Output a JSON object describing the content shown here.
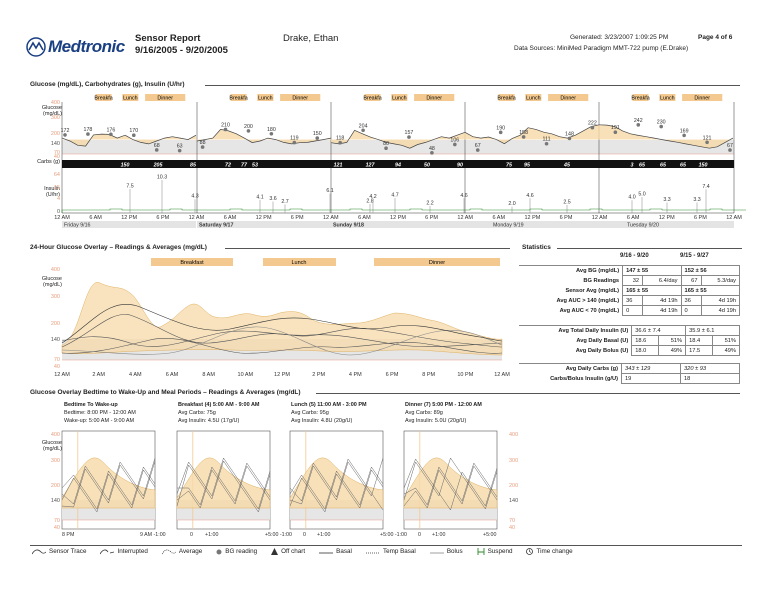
{
  "header": {
    "logo": "Medtronic",
    "report_title": "Sensor Report",
    "date_range": "9/16/2005 - 9/20/2005",
    "patient": "Drake, Ethan",
    "generated": "Generated: 3/23/2007 1:09:25 PM",
    "page": "Page 4 of 6",
    "data_sources": "Data Sources: MiniMed Paradigm MMT-722 pump (E.Drake)"
  },
  "daily_section": {
    "title": "Glucose (mg/dL), Carbohydrates (g), Insulin (U/hr)",
    "glucose_label": "Glucose (mg/dL)",
    "carbs_label": "Carbs (g)",
    "insulin_label": "Insulin (U/hr)",
    "y_ticks": [
      "400",
      "300",
      "200",
      "140",
      "70",
      "40"
    ],
    "insulin_ticks": [
      "64",
      "15",
      "4",
      "0"
    ],
    "x_ticks": [
      "12 AM",
      "6 AM",
      "12 PM",
      "6 PM",
      "12 AM",
      "6 AM",
      "12 PM",
      "6 PM",
      "12 AM",
      "6 AM",
      "12 PM",
      "6 PM",
      "12 AM",
      "6 AM",
      "12 PM",
      "6 PM",
      "12 AM",
      "6 AM",
      "12 PM",
      "6 PM",
      "12 AM"
    ],
    "day_labels": [
      "Friday 9/16",
      "Saturday 9/17",
      "Sunday 9/18",
      "Monday 9/19",
      "Tuesday 9/20"
    ],
    "meal_labels": [
      "Breakfa",
      "Lunch",
      "Dinner"
    ],
    "bg_labels": [
      "172",
      "178",
      "176",
      "170",
      "68",
      "63",
      "88",
      "210",
      "200",
      "180",
      "119",
      "150",
      "118",
      "204",
      "80",
      "157",
      "48",
      "106",
      "67",
      "190",
      "158",
      "111",
      "148",
      "222",
      "191",
      "242",
      "230",
      "169",
      "121",
      "67"
    ],
    "carbs": [
      "150",
      "205",
      "85",
      "72",
      "77",
      "53",
      "121",
      "127",
      "94",
      "50",
      "90",
      "75",
      "95",
      "45",
      "3",
      "65",
      "65",
      "65",
      "150"
    ],
    "bolus_labels": [
      "7.5",
      "10.3",
      "4.3",
      "4.1",
      "3.6",
      "2.7",
      "6.1",
      "2.8",
      "4.2",
      "4.7",
      "2.2",
      "4.6",
      "2.0",
      "4.6",
      "2.5",
      "4.0",
      "5.0",
      "3.3",
      "3.3",
      "7.4"
    ]
  },
  "overlay_section": {
    "title": "24-Hour Glucose Overlay – Readings & Averages (mg/dL)",
    "glucose_label": "Glucose (mg/dL)",
    "y_ticks": [
      "400",
      "300",
      "200",
      "140",
      "70",
      "40"
    ],
    "meals": [
      "Breakfast",
      "Lunch",
      "Dinner"
    ],
    "x_ticks": [
      "12 AM",
      "2 AM",
      "4 AM",
      "6 AM",
      "8 AM",
      "10 AM",
      "12 PM",
      "2 PM",
      "4 PM",
      "6 PM",
      "8 PM",
      "10 PM",
      "12 AM"
    ]
  },
  "statistics": {
    "title": "Statistics",
    "col1": "9/16 - 9/20",
    "col2": "9/15 - 9/27",
    "rows": [
      {
        "label": "Avg BG (mg/dL)",
        "a": "147 ± 55",
        "b": "152 ± 56"
      },
      {
        "label": "BG Readings",
        "a1": "32",
        "a2": "6.4/day",
        "b1": "67",
        "b2": "5.3/day"
      },
      {
        "label": "Sensor Avg (mg/dL)",
        "a": "165 ± 55",
        "b": "165 ± 55"
      },
      {
        "label": "Avg AUC > 140 (mg/dL)",
        "a1": "36",
        "a2": "4d 19h",
        "b1": "36",
        "b2": "4d 19h"
      },
      {
        "label": "Avg AUC < 70 (mg/dL)",
        "a1": "0",
        "a2": "4d 19h",
        "b1": "0",
        "b2": "4d 19h"
      }
    ],
    "rows2": [
      {
        "label": "Avg Total Daily Insulin (U)",
        "a": "36.6 ± 7.4",
        "b": "35.9 ± 6.1"
      },
      {
        "label": "Avg Daily Basal (U)",
        "a1": "18.6",
        "a2": "51%",
        "b1": "18.4",
        "b2": "51%"
      },
      {
        "label": "Avg Daily Bolus (U)",
        "a1": "18.0",
        "a2": "49%",
        "b1": "17.5",
        "b2": "49%"
      }
    ],
    "rows3": [
      {
        "label": "Avg Daily Carbs (g)",
        "a": "343 ± 129",
        "b": "320 ± 93"
      },
      {
        "label": "Carbs/Bolus Insulin (g/U)",
        "a": "19",
        "b": "18"
      }
    ]
  },
  "periods_section": {
    "title": "Glucose Overlay Bedtime to Wake-Up and Meal Periods – Readings & Averages (mg/dL)",
    "glucose_label": "Glucose (mg/dL)",
    "y_ticks": [
      "400",
      "300",
      "200",
      "140",
      "70",
      "40"
    ],
    "periods": [
      {
        "l1": "Bedtime To Wake-up",
        "l2": "Bedtime: 8:00 PM - 12:00 AM",
        "l3": "Wake-up: 5:00 AM - 9:00 AM",
        "x1": "8 PM",
        "x2": "9 AM -1:00",
        "x3": "0",
        "x4": "+1:00"
      },
      {
        "l1": "Breakfast (4) 5:00 AM - 9:00 AM",
        "l2": "Avg Carbs: 75g",
        "l3": "Avg Insulin: 4.5U (17g/U)",
        "x1": "+5:00 -1:00",
        "x2": "0",
        "x3": "+1:00",
        "x4": ""
      },
      {
        "l1": "Lunch (5) 11:00 AM - 3:00 PM",
        "l2": "Avg Carbs: 95g",
        "l3": "Avg Insulin: 4.8U (20g/U)",
        "x1": "+5:00 -1:00",
        "x2": "0",
        "x3": "+1:00",
        "x4": ""
      },
      {
        "l1": "Dinner (7) 5:00 PM - 12:00 AM",
        "l2": "Avg Carbs: 89g",
        "l3": "Avg Insulin: 5.0U (20g/U)",
        "x1": "0",
        "x2": "+1:00",
        "x3": "+5:00",
        "x4": ""
      }
    ],
    "right_ticks": [
      "400",
      "300",
      "200",
      "140",
      "70",
      "40"
    ]
  },
  "legend": [
    {
      "icon": "sensor-trace-icon",
      "label": "Sensor Trace"
    },
    {
      "icon": "interrupted-icon",
      "label": "Interrupted"
    },
    {
      "icon": "average-icon",
      "label": "Average"
    },
    {
      "icon": "bg-reading-icon",
      "label": "BG reading"
    },
    {
      "icon": "off-chart-icon",
      "label": "Off chart"
    },
    {
      "icon": "basal-icon",
      "label": "Basal"
    },
    {
      "icon": "temp-basal-icon",
      "label": "Temp Basal"
    },
    {
      "icon": "bolus-icon",
      "label": "Bolus"
    },
    {
      "icon": "suspend-icon",
      "label": "Suspend"
    },
    {
      "icon": "time-change-icon",
      "label": "Time change"
    }
  ],
  "chart_data": [
    {
      "type": "line",
      "title": "Glucose (mg/dL), Carbohydrates (g), Insulin (U/hr)",
      "ylabel": "Glucose (mg/dL)",
      "ylim": [
        40,
        400
      ],
      "bg_readings": [
        172,
        178,
        176,
        170,
        68,
        63,
        88,
        210,
        200,
        180,
        119,
        150,
        118,
        204,
        80,
        157,
        48,
        106,
        67,
        190,
        158,
        111,
        148,
        222,
        191,
        242,
        230,
        169,
        121,
        67
      ],
      "carbs_g": [
        150,
        205,
        85,
        72,
        77,
        53,
        121,
        127,
        94,
        50,
        90,
        75,
        95,
        45,
        3,
        65,
        65,
        65,
        150
      ],
      "bolus_u": [
        7.5,
        10.3,
        4.3,
        4.1,
        3.6,
        2.7,
        6.1,
        2.8,
        4.2,
        4.7,
        2.2,
        4.6,
        2.0,
        4.6,
        2.5,
        4.0,
        5.0,
        3.3,
        3.3,
        7.4
      ]
    },
    {
      "type": "table",
      "title": "Statistics",
      "columns": [
        "9/16 - 9/20",
        "9/15 - 9/27"
      ]
    }
  ]
}
